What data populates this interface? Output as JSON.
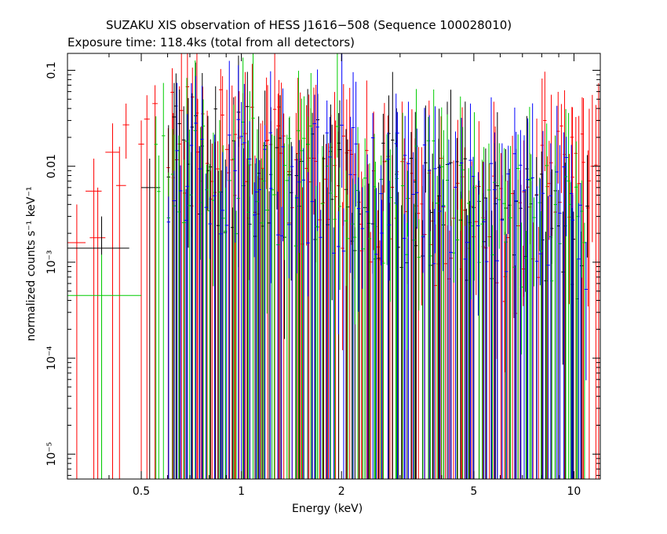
{
  "chart_data": {
    "type": "scatter",
    "title": "SUZAKU XIS observation of HESS J1616−508 (Sequence 100028010)",
    "subtitle": "Exposure time: 118.4ks (total from all detectors)",
    "xlabel": "Energy (keV)",
    "ylabel": "normalized counts s⁻¹ keV⁻¹",
    "xscale": "log",
    "yscale": "log",
    "xlim": [
      0.3,
      12.0
    ],
    "ylim": [
      5.5e-06,
      0.15
    ],
    "x_ticks": [
      {
        "value": 0.5,
        "label": "0.5"
      },
      {
        "value": 1,
        "label": "1"
      },
      {
        "value": 2,
        "label": "2"
      },
      {
        "value": 5,
        "label": "5"
      },
      {
        "value": 10,
        "label": "10"
      }
    ],
    "y_ticks": [
      {
        "value": 0.1,
        "label": "0.1"
      },
      {
        "value": 0.01,
        "label": "0.01"
      },
      {
        "value": 0.001,
        "label": "10⁻³"
      },
      {
        "value": 0.0001,
        "label": "10⁻⁴"
      },
      {
        "value": 1e-05,
        "label": "10⁻⁵"
      }
    ],
    "grid": false,
    "legend": "none",
    "series": [
      {
        "color": "#ff0000",
        "points": [
          {
            "x": 0.32,
            "xlo": 0.3,
            "xhi": 0.34,
            "y": 0.0016,
            "ylo": 5.5e-06,
            "yhi": 0.004
          },
          {
            "x": 0.36,
            "xlo": 0.34,
            "xhi": 0.38,
            "y": 0.0055,
            "ylo": 5.5e-06,
            "yhi": 0.012
          },
          {
            "x": 0.37,
            "xlo": 0.35,
            "xhi": 0.39,
            "y": 0.0018,
            "ylo": 5.5e-06,
            "yhi": 0.006
          },
          {
            "x": 0.41,
            "xlo": 0.39,
            "xhi": 0.43,
            "y": 0.014,
            "ylo": 5.5e-06,
            "yhi": 0.028
          },
          {
            "x": 0.43,
            "xlo": 0.42,
            "xhi": 0.45,
            "y": 0.0063,
            "ylo": 5.5e-06,
            "yhi": 0.016
          },
          {
            "x": 0.45,
            "xlo": 0.44,
            "xhi": 0.46,
            "y": 0.027,
            "ylo": 0.012,
            "yhi": 0.045
          },
          {
            "x": 0.5,
            "xlo": 0.49,
            "xhi": 0.51,
            "y": 0.017,
            "ylo": 5.5e-06,
            "yhi": 0.03
          },
          {
            "x": 0.52,
            "xlo": 0.51,
            "xhi": 0.53,
            "y": 0.031,
            "ylo": 5.5e-06,
            "yhi": 0.055
          },
          {
            "x": 0.55,
            "xlo": 0.54,
            "xhi": 0.56,
            "y": 0.045,
            "ylo": 5.5e-06,
            "yhi": 0.07
          }
        ],
        "dense": {
          "x_min": 0.6,
          "x_max": 11.9,
          "count": 160,
          "seed": 11,
          "base_y": 0.02,
          "fall_to": 0.9,
          "rise_after": 8.0,
          "rise_y": 0.01
        }
      },
      {
        "color": "#000000",
        "points": [
          {
            "x": 0.38,
            "xlo": 0.3,
            "xhi": 0.46,
            "y": 0.0014,
            "ylo": 5.5e-06,
            "yhi": 0.003
          },
          {
            "x": 0.53,
            "xlo": 0.5,
            "xhi": 0.57,
            "y": 0.006,
            "ylo": 5.5e-06,
            "yhi": 0.012
          }
        ],
        "dense": {
          "x_min": 0.6,
          "x_max": 11.0,
          "count": 110,
          "seed": 23,
          "base_y": 0.012,
          "fall_to": 0.5,
          "rise_after": 20,
          "rise_y": 0.0
        }
      },
      {
        "color": "#00cc00",
        "points": [
          {
            "x": 0.38,
            "xlo": 0.3,
            "xhi": 0.5,
            "y": 0.00045,
            "ylo": 5.5e-06,
            "yhi": 0.0012
          }
        ],
        "dense": {
          "x_min": 0.55,
          "x_max": 11.0,
          "count": 120,
          "seed": 37,
          "base_y": 0.011,
          "fall_to": 0.45,
          "rise_after": 20,
          "rise_y": 0.0
        }
      },
      {
        "color": "#0000ff",
        "points": [],
        "dense": {
          "x_min": 0.6,
          "x_max": 11.0,
          "count": 110,
          "seed": 53,
          "base_y": 0.01,
          "fall_to": 0.4,
          "rise_after": 20,
          "rise_y": 0.0
        }
      }
    ]
  }
}
